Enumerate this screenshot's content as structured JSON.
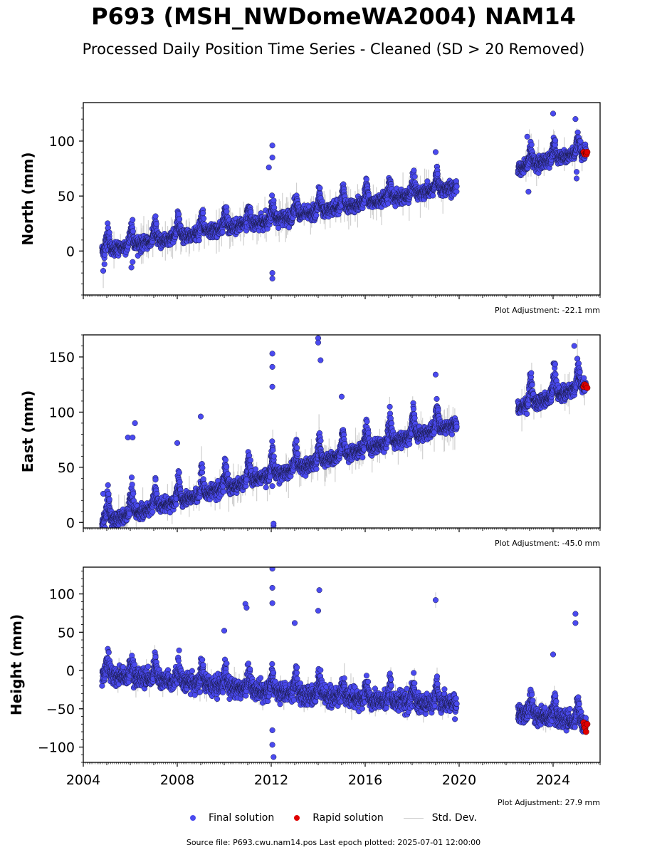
{
  "title": "P693 (MSH_NWDomeWA2004) NAM14",
  "subtitle": "Processed Daily Position Time Series - Cleaned (SD > 20 Removed)",
  "footer": "Source file: P693.cwu.nam14.pos  Last epoch plotted: 2025-07-01 12:00:00",
  "legend": {
    "final": "Final solution",
    "rapid": "Rapid solution",
    "std": "Std. Dev."
  },
  "colors": {
    "final": "#4a4aef",
    "rapid": "#e00000",
    "std": "#d0d0d0"
  },
  "chart_data": [
    {
      "type": "scatter",
      "ylabel": "North (mm)",
      "adjustment": "Plot Adjustment: -22.1 mm",
      "xlim": [
        2004.0,
        2026.0
      ],
      "ylim": [
        -40,
        135
      ],
      "yticks": [
        0,
        50,
        100
      ],
      "xticks": [
        2004,
        2008,
        2012,
        2016,
        2020,
        2024
      ],
      "show_xtick_labels": false,
      "trend": [
        [
          2004.8,
          0
        ],
        [
          2019.8,
          58
        ],
        [
          2022.5,
          75
        ],
        [
          2025.4,
          90
        ]
      ],
      "seasonal_amplitude": 14,
      "noise": 3,
      "gaps": [
        [
          2019.9,
          2022.5
        ]
      ],
      "outliers": [
        [
          2004.85,
          -18
        ],
        [
          2004.9,
          -12
        ],
        [
          2006.05,
          -15
        ],
        [
          2006.1,
          -10
        ],
        [
          2012.05,
          -25
        ],
        [
          2012.05,
          -20
        ],
        [
          2012.05,
          96
        ],
        [
          2012.05,
          85
        ],
        [
          2011.9,
          76
        ],
        [
          2019.0,
          90
        ],
        [
          2022.9,
          104
        ],
        [
          2022.95,
          54
        ],
        [
          2024.0,
          125
        ],
        [
          2024.95,
          120
        ],
        [
          2025.0,
          72
        ],
        [
          2025.0,
          66
        ]
      ],
      "rapid": [
        [
          2025.3,
          90
        ],
        [
          2025.35,
          88
        ],
        [
          2025.4,
          89
        ],
        [
          2025.42,
          88
        ],
        [
          2025.45,
          90
        ]
      ]
    },
    {
      "type": "scatter",
      "ylabel": "East (mm)",
      "adjustment": "Plot Adjustment: -45.0 mm",
      "xlim": [
        2004.0,
        2026.0
      ],
      "ylim": [
        -5,
        170
      ],
      "yticks": [
        0,
        50,
        100,
        150
      ],
      "xticks": [
        2004,
        2008,
        2012,
        2016,
        2020,
        2024
      ],
      "show_xtick_labels": false,
      "trend": [
        [
          2004.8,
          0
        ],
        [
          2019.8,
          88
        ],
        [
          2022.5,
          103
        ],
        [
          2025.4,
          124
        ]
      ],
      "seasonal_amplitude": 18,
      "noise": 3,
      "gaps": [
        [
          2019.9,
          2022.5
        ]
      ],
      "outliers": [
        [
          2004.85,
          26
        ],
        [
          2005.9,
          77
        ],
        [
          2006.1,
          77
        ],
        [
          2006.2,
          90
        ],
        [
          2008.0,
          72
        ],
        [
          2009.0,
          96
        ],
        [
          2012.05,
          153
        ],
        [
          2012.05,
          141
        ],
        [
          2012.05,
          123
        ],
        [
          2012.05,
          33
        ],
        [
          2012.1,
          -3
        ],
        [
          2012.1,
          -1
        ],
        [
          2014.0,
          167
        ],
        [
          2014.0,
          163
        ],
        [
          2014.1,
          147
        ],
        [
          2015.0,
          114
        ],
        [
          2019.0,
          134
        ],
        [
          2024.9,
          160
        ]
      ],
      "rapid": [
        [
          2025.3,
          123
        ],
        [
          2025.35,
          125
        ],
        [
          2025.4,
          124
        ],
        [
          2025.45,
          122
        ]
      ]
    },
    {
      "type": "scatter",
      "ylabel": "Height (mm)",
      "adjustment": "Plot Adjustment: 27.9 mm",
      "xlim": [
        2004.0,
        2026.0
      ],
      "ylim": [
        -120,
        135
      ],
      "yticks": [
        -100,
        -50,
        0,
        50,
        100
      ],
      "ytick_labels": [
        "−100",
        "−50",
        "0",
        "50",
        "100"
      ],
      "xticks": [
        2004,
        2008,
        2012,
        2016,
        2020,
        2024
      ],
      "xtick_labels": [
        "2004",
        "2008",
        "2012",
        "2016",
        "2020",
        "2024"
      ],
      "show_xtick_labels": true,
      "trend": [
        [
          2004.8,
          -5
        ],
        [
          2012.0,
          -28
        ],
        [
          2016.0,
          -38
        ],
        [
          2019.8,
          -45
        ],
        [
          2022.5,
          -55
        ],
        [
          2025.4,
          -70
        ]
      ],
      "seasonal_amplitude": 20,
      "noise": 6,
      "gaps": [
        [
          2019.9,
          2022.5
        ]
      ],
      "outliers": [
        [
          2010.0,
          52
        ],
        [
          2010.9,
          87
        ],
        [
          2010.95,
          82
        ],
        [
          2012.05,
          133
        ],
        [
          2012.05,
          108
        ],
        [
          2012.05,
          88
        ],
        [
          2012.05,
          -78
        ],
        [
          2012.05,
          -97
        ],
        [
          2012.1,
          -113
        ],
        [
          2013.0,
          62
        ],
        [
          2014.0,
          78
        ],
        [
          2014.05,
          105
        ],
        [
          2019.0,
          92
        ],
        [
          2024.0,
          21
        ],
        [
          2024.95,
          74
        ],
        [
          2024.95,
          62
        ]
      ],
      "rapid": [
        [
          2025.3,
          -68
        ],
        [
          2025.33,
          -72
        ],
        [
          2025.36,
          -75
        ],
        [
          2025.4,
          -80
        ],
        [
          2025.45,
          -70
        ]
      ]
    }
  ]
}
